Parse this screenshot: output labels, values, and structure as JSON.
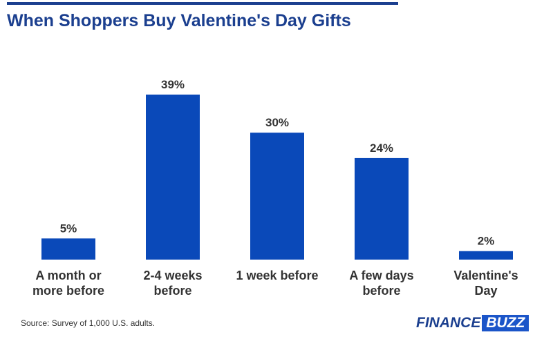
{
  "chart_data": {
    "type": "bar",
    "title": "When Shoppers Buy Valentine's Day Gifts",
    "categories": [
      "A month or more before",
      "2-4 weeks before",
      "1 week before",
      "A few days before",
      "Valentine's Day"
    ],
    "values": [
      5,
      39,
      30,
      24,
      2
    ],
    "value_labels": [
      "5%",
      "39%",
      "30%",
      "24%",
      "2%"
    ],
    "color": "#0a49b9",
    "source": "Source: Survey of 1,000 U.S. adults.",
    "logo": {
      "left": "FINANCE",
      "right": "BUZZ"
    }
  }
}
